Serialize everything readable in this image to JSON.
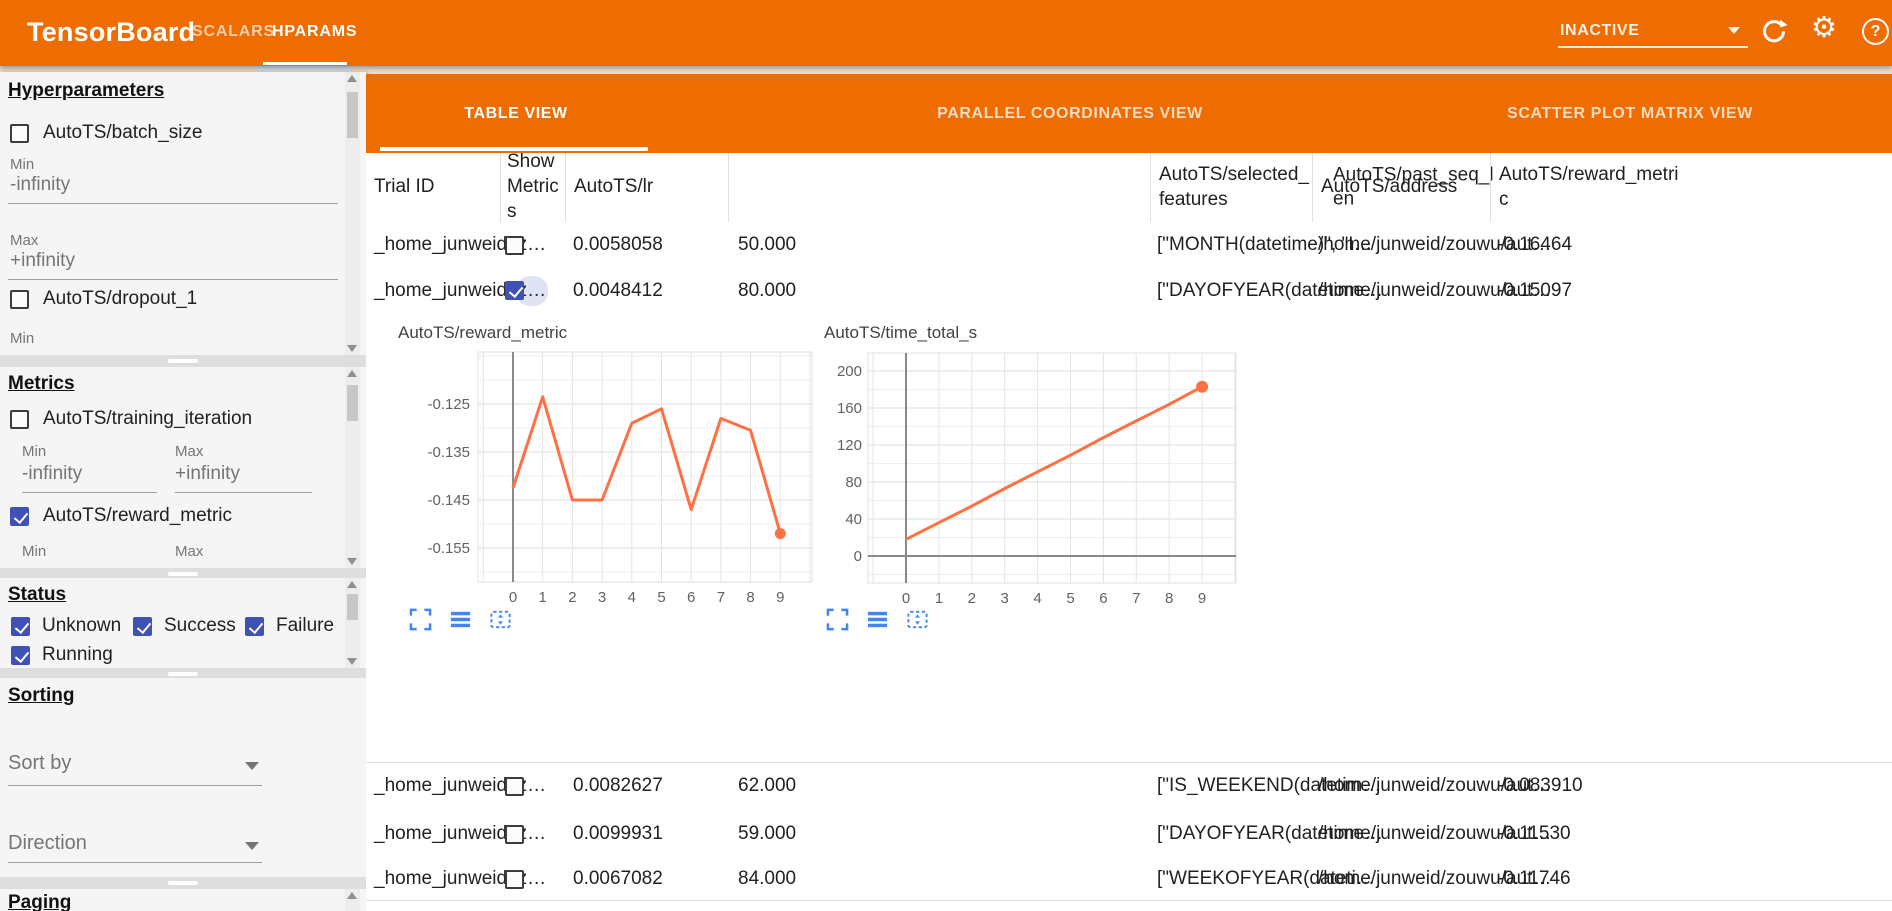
{
  "toolbar": {
    "logo": "TensorBoard",
    "tabs": [
      {
        "label": "SCALARS",
        "active": false
      },
      {
        "label": "HPARAMS",
        "active": true
      }
    ],
    "run_selector_value": "INACTIVE",
    "settings_glyph": "⚙",
    "help_glyph": "?",
    "icons": {
      "refresh": "circular-arrow",
      "settings": "gear",
      "help": "question-mark-circle",
      "dropdown": "triangle-down"
    }
  },
  "colors": {
    "toolbar_orange": "#ef6c00",
    "accent_indigo": "#3f51b5",
    "chart_line_orange": "#ff7043",
    "chart_icon_blue": "#4285f4"
  },
  "sidebar": {
    "hyperparameters": {
      "title": "Hyperparameters",
      "item1": {
        "label": "AutoTS/batch_size",
        "checked": false,
        "min_label": "Min",
        "min_value": "-infinity",
        "max_label": "Max",
        "max_value": "+infinity"
      },
      "item2": {
        "label": "AutoTS/dropout_1",
        "checked": false,
        "min_label": "Min"
      }
    },
    "metrics": {
      "title": "Metrics",
      "item1": {
        "label": "AutoTS/training_iteration",
        "checked": false,
        "min_label": "Min",
        "min_value": "-infinity",
        "max_label": "Max",
        "max_value": "+infinity"
      },
      "item2": {
        "label": "AutoTS/reward_metric",
        "checked": true,
        "min_label": "Min",
        "max_label": "Max"
      }
    },
    "status": {
      "title": "Status",
      "options": [
        {
          "label": "Unknown",
          "checked": true
        },
        {
          "label": "Success",
          "checked": true
        },
        {
          "label": "Failure",
          "checked": true
        },
        {
          "label": "Running",
          "checked": true
        }
      ]
    },
    "sorting": {
      "title": "Sorting",
      "sort_by_label": "Sort by",
      "direction_label": "Direction"
    },
    "paging": {
      "title": "Paging"
    }
  },
  "main": {
    "view_tabs": [
      {
        "label": "TABLE VIEW",
        "active": true
      },
      {
        "label": "PARALLEL COORDINATES VIEW",
        "active": false
      },
      {
        "label": "SCATTER PLOT MATRIX VIEW",
        "active": false
      }
    ],
    "table": {
      "columns": [
        "Trial ID",
        "Show Metrics",
        "AutoTS/lr",
        "AutoTS/past_seq_len",
        "AutoTS/selected_features",
        "AutoTS/address",
        "AutoTS/reward_metric"
      ],
      "rows": [
        {
          "trial": "_home_junweid_z…",
          "show_metrics": false,
          "lr": "0.0058058",
          "past_seq_len": "50.000",
          "selected_features": "[\"MONTH(datetime)\", \"I…",
          "address": "/home/junweid/zouwu/aut…",
          "reward_metric": "-0.16464"
        },
        {
          "trial": "_home_junweid_z…",
          "show_metrics": true,
          "lr": "0.0048412",
          "past_seq_len": "80.000",
          "selected_features": "[\"DAYOFYEAR(datetime…",
          "address": "/home/junweid/zouwu/aut…",
          "reward_metric": "-0.15097"
        },
        {
          "trial": "_home_junweid_z…",
          "show_metrics": false,
          "lr": "0.0082627",
          "past_seq_len": "62.000",
          "selected_features": "[\"IS_WEEKEND(datetim…",
          "address": "/home/junweid/zouwu/aut…",
          "reward_metric": "-0.083910"
        },
        {
          "trial": "_home_junweid_z…",
          "show_metrics": false,
          "lr": "0.0099931",
          "past_seq_len": "59.000",
          "selected_features": "[\"DAYOFYEAR(datetime…",
          "address": "/home/junweid/zouwu/aut…",
          "reward_metric": "-0.11530"
        },
        {
          "trial": "_home_junweid_z…",
          "show_metrics": false,
          "lr": "0.0067082",
          "past_seq_len": "84.000",
          "selected_features": "[\"WEEKOFYEAR(dateti…",
          "address": "/home/junweid/zouwu/aut…",
          "reward_metric": "-0.11746"
        }
      ]
    },
    "chart_icons": [
      "expand-fullscreen",
      "data-table-lines",
      "fit-to-view-dashed-box"
    ]
  },
  "chart_data": [
    {
      "type": "line",
      "title": "AutoTS/reward_metric",
      "x": [
        0,
        1,
        2,
        3,
        4,
        5,
        6,
        7,
        8,
        9
      ],
      "values": [
        -0.1425,
        -0.1235,
        -0.145,
        -0.145,
        -0.129,
        -0.126,
        -0.147,
        -0.128,
        -0.1305,
        -0.152
      ],
      "yticks": [
        {
          "v": -0.125,
          "label": "-0.125"
        },
        {
          "v": -0.135,
          "label": "-0.135"
        },
        {
          "v": -0.145,
          "label": "-0.145"
        },
        {
          "v": -0.155,
          "label": "-0.155"
        }
      ],
      "xticks": [
        "0",
        "1",
        "2",
        "3",
        "4",
        "5",
        "6",
        "7",
        "8",
        "9"
      ],
      "ylim": [
        -0.162,
        -0.113
      ],
      "line_color": "#ff7043",
      "endpoint_dot": true,
      "grid": true,
      "legend": "none"
    },
    {
      "type": "line",
      "title": "AutoTS/time_total_s",
      "x": [
        0,
        1,
        2,
        3,
        4,
        5,
        6,
        7,
        8,
        9
      ],
      "values": [
        18,
        36,
        54,
        73,
        91,
        109,
        128,
        146,
        164,
        183
      ],
      "yticks": [
        {
          "v": 200,
          "label": "200"
        },
        {
          "v": 160,
          "label": "160"
        },
        {
          "v": 120,
          "label": "120"
        },
        {
          "v": 80,
          "label": "80"
        },
        {
          "v": 40,
          "label": "40"
        },
        {
          "v": 0,
          "label": "0"
        }
      ],
      "xticks": [
        "0",
        "1",
        "2",
        "3",
        "4",
        "5",
        "6",
        "7",
        "8",
        "9"
      ],
      "ylim": [
        -29,
        220
      ],
      "line_color": "#ff7043",
      "endpoint_dot": true,
      "grid": true,
      "legend": "none"
    }
  ]
}
